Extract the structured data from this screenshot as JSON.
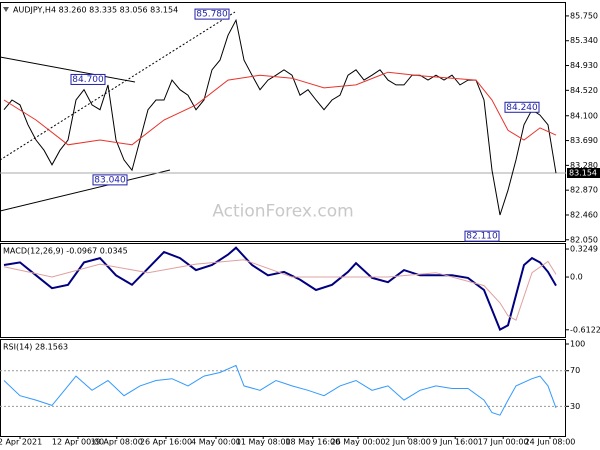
{
  "chart_data": [
    {
      "type": "line",
      "title": "AUDJPY,H4 83.260 83.335 83.056 83.154",
      "watermark": "ActionForex.com",
      "xlim": [
        -0.5,
        70.25
      ],
      "ylim": [
        82.03,
        85.98
      ],
      "yticks": [
        {
          "value": 85.75,
          "label": "85.750"
        },
        {
          "value": 85.34,
          "label": "85.340"
        },
        {
          "value": 84.93,
          "label": "84.930"
        },
        {
          "value": 84.52,
          "label": "84.520"
        },
        {
          "value": 84.1,
          "label": "84.100"
        },
        {
          "value": 83.69,
          "label": "83.690"
        },
        {
          "value": 83.28,
          "label": "83.280"
        },
        {
          "value": 82.87,
          "label": "82.870"
        },
        {
          "value": 82.46,
          "label": "82.460"
        },
        {
          "value": 82.05,
          "label": "82.050"
        }
      ],
      "last_price": {
        "value": 83.154,
        "label": "83.154"
      },
      "series": [
        {
          "color": "#000000",
          "x": [
            0,
            1,
            2,
            3,
            4,
            5,
            6,
            7,
            8,
            9,
            10,
            11,
            12,
            13,
            14,
            15,
            16,
            17,
            18,
            19,
            20,
            21,
            22,
            23,
            24,
            25,
            26,
            27,
            28,
            29,
            30,
            31,
            32,
            33,
            34,
            35,
            36,
            37,
            38,
            39,
            40,
            41,
            42,
            43,
            44,
            45,
            46,
            47,
            48,
            49,
            50,
            51,
            52,
            53,
            54,
            55,
            56,
            57,
            58,
            59,
            60,
            61,
            62,
            63,
            64,
            65,
            66,
            67,
            68,
            69
          ],
          "values": [
            84.2,
            84.36,
            84.28,
            83.95,
            83.7,
            83.53,
            83.29,
            83.53,
            83.7,
            84.36,
            84.53,
            84.28,
            84.2,
            84.61,
            83.7,
            83.37,
            83.2,
            83.7,
            84.2,
            84.36,
            84.36,
            84.69,
            84.53,
            84.44,
            84.2,
            84.36,
            84.86,
            85.02,
            85.43,
            85.68,
            85.02,
            84.77,
            84.53,
            84.69,
            84.77,
            84.86,
            84.77,
            84.44,
            84.53,
            84.36,
            84.2,
            84.36,
            84.44,
            84.77,
            84.86,
            84.69,
            84.77,
            84.86,
            84.69,
            84.61,
            84.61,
            84.77,
            84.77,
            84.69,
            84.77,
            84.69,
            84.77,
            84.61,
            84.69,
            84.69,
            84.36,
            83.2,
            82.46,
            82.87,
            83.37,
            83.95,
            84.2,
            84.11,
            83.95,
            83.15
          ]
        },
        {
          "color": "#e8332b",
          "x": [
            0,
            4,
            8,
            12,
            16,
            20,
            24,
            28,
            32,
            36,
            40,
            44,
            48,
            52,
            56,
            59,
            61,
            63,
            65,
            67,
            69
          ],
          "values": [
            84.36,
            84.03,
            83.62,
            83.7,
            83.62,
            84.03,
            84.28,
            84.69,
            84.77,
            84.72,
            84.56,
            84.61,
            84.82,
            84.76,
            84.72,
            84.69,
            84.36,
            83.86,
            83.7,
            83.9,
            83.78
          ]
        }
      ],
      "annotations": [
        {
          "x": 26,
          "value": 85.78,
          "label": "85.780"
        },
        {
          "x": 10.5,
          "value": 84.7,
          "label": "84.700"
        },
        {
          "x": 13.25,
          "value": 83.04,
          "label": "83.040"
        },
        {
          "x": 64.75,
          "value": 84.24,
          "label": "84.240"
        },
        {
          "x": 59.75,
          "value": 82.11,
          "label": "82.110"
        }
      ]
    },
    {
      "type": "line",
      "title": "MACD(12,26,9) -0.0967 0.0345",
      "xlim": [
        -0.5,
        70.25
      ],
      "ylim": [
        -0.696,
        0.395
      ],
      "yticks": [
        0.3249,
        {
          "value": 0,
          "label": "0.0"
        },
        -0.6122
      ],
      "series": [
        {
          "color": "#000080",
          "x": [
            0,
            2,
            4,
            6,
            8,
            10,
            12,
            14,
            16,
            18,
            20,
            22,
            24,
            26,
            28,
            29,
            31,
            33,
            35,
            37,
            39,
            41,
            43,
            44,
            46,
            48,
            50,
            52,
            54,
            56,
            58,
            60,
            61,
            62,
            63,
            64,
            65,
            66,
            67,
            68,
            69
          ],
          "values": [
            0.14,
            0.17,
            0.02,
            -0.13,
            -0.09,
            0.17,
            0.22,
            0.02,
            -0.09,
            0.1,
            0.29,
            0.22,
            0.08,
            0.14,
            0.26,
            0.34,
            0.14,
            0.02,
            0.06,
            -0.03,
            -0.15,
            -0.09,
            0.06,
            0.16,
            -0.01,
            -0.06,
            0.08,
            0.02,
            0.02,
            0.02,
            -0.01,
            -0.15,
            -0.38,
            -0.61,
            -0.56,
            -0.21,
            0.14,
            0.22,
            0.17,
            0.06,
            -0.1
          ]
        },
        {
          "color": "#e0a0a0",
          "x": [
            0,
            6,
            12,
            18,
            24,
            30,
            36,
            42,
            48,
            54,
            60,
            62,
            63,
            64,
            66,
            68,
            69
          ],
          "values": [
            0.12,
            0.0,
            0.15,
            0.05,
            0.15,
            0.2,
            0.0,
            0.0,
            0.0,
            0.05,
            -0.1,
            -0.3,
            -0.45,
            -0.5,
            0.05,
            0.18,
            0.03
          ]
        }
      ]
    },
    {
      "type": "line",
      "title": "RSI(14) 28.1563",
      "xlim": [
        -0.5,
        70.25
      ],
      "ylim": [
        -3.3,
        105.6
      ],
      "yticks": [
        100,
        70,
        30
      ],
      "levels": [
        70,
        30
      ],
      "xticks": [
        {
          "value": 2,
          "label": "2 Apr 2021"
        },
        {
          "value": 9.25,
          "label": "12 Apr 00:00"
        },
        {
          "value": 14.1,
          "label": "19 Apr 08:00"
        },
        {
          "value": 20.25,
          "label": "26 Apr 16:00"
        },
        {
          "value": 26.5,
          "label": "4 May 00:00"
        },
        {
          "value": 32.4,
          "label": "11 May 08:00"
        },
        {
          "value": 38.6,
          "label": "18 May 16:00"
        },
        {
          "value": 44.25,
          "label": "26 May 00:00"
        },
        {
          "value": 50.5,
          "label": "2 Jun 08:00"
        },
        {
          "value": 56.4,
          "label": "9 Jun 16:00"
        },
        {
          "value": 62.4,
          "label": "17 Jun 00:00"
        },
        {
          "value": 68.25,
          "label": "24 Jun 08:00"
        }
      ],
      "series": [
        {
          "color": "#3399ff",
          "x": [
            0,
            2,
            4,
            6,
            8,
            9,
            11,
            13,
            15,
            17,
            19,
            21,
            23,
            25,
            27,
            29,
            30,
            32,
            34,
            36,
            38,
            40,
            42,
            44,
            46,
            48,
            50,
            52,
            54,
            56,
            58,
            60,
            61,
            62,
            63,
            64,
            66,
            67,
            68,
            69
          ],
          "values": [
            59,
            42,
            37,
            31,
            53,
            64,
            48,
            59,
            42,
            53,
            59,
            61,
            53,
            64,
            68,
            76,
            53,
            48,
            59,
            53,
            48,
            42,
            53,
            59,
            48,
            53,
            37,
            48,
            53,
            50,
            50,
            37,
            23,
            20,
            37,
            53,
            61,
            64,
            53,
            28.16
          ]
        }
      ]
    }
  ]
}
